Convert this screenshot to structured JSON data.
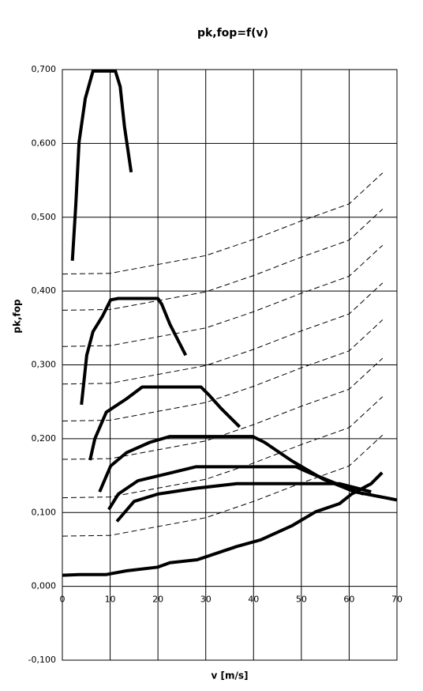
{
  "chart_data": {
    "type": "line",
    "title": "pk,fop=f(v)",
    "x_label": "v [m/s]",
    "y_label": "pk,fop",
    "xlim": [
      0,
      70
    ],
    "xticks": [
      0,
      10,
      20,
      30,
      40,
      50,
      60,
      70
    ],
    "ylim": [
      -0.1,
      0.7
    ],
    "yticks": [
      {
        "value": -0.1,
        "label": "-0,100"
      },
      {
        "value": 0,
        "label": "0,000"
      },
      {
        "value": 0.1,
        "label": "0,100"
      },
      {
        "value": 0.2,
        "label": "0,200"
      },
      {
        "value": 0.3,
        "label": "0,300"
      },
      {
        "value": 0.4,
        "label": "0,400"
      },
      {
        "value": 0.5,
        "label": "0,500"
      },
      {
        "value": 0.6,
        "label": "0,600"
      },
      {
        "value": 0.7,
        "label": "0,700"
      }
    ],
    "grid": true,
    "series": [
      {
        "color": "#000000",
        "style": "solid",
        "x": [
          2.1,
          2.8,
          3.5,
          4.8,
          6.4,
          8.1,
          11.1,
          12.1,
          13.0,
          14.4
        ],
        "values": [
          0.441,
          0.516,
          0.602,
          0.661,
          0.698,
          0.698,
          0.698,
          0.677,
          0.623,
          0.561
        ]
      },
      {
        "color": "#000000",
        "style": "solid",
        "x": [
          4.0,
          5.1,
          6.4,
          8.4,
          10.1,
          11.7,
          20.0,
          20.8,
          22.5,
          25.8
        ],
        "values": [
          0.246,
          0.313,
          0.345,
          0.366,
          0.388,
          0.39,
          0.39,
          0.382,
          0.355,
          0.313
        ]
      },
      {
        "color": "#000000",
        "style": "solid",
        "x": [
          5.8,
          6.8,
          9.2,
          13.4,
          16.7,
          29.0,
          30.7,
          33.2,
          37.1
        ],
        "values": [
          0.171,
          0.2,
          0.236,
          0.254,
          0.27,
          0.27,
          0.259,
          0.241,
          0.216
        ]
      },
      {
        "color": "#000000",
        "style": "solid",
        "x": [
          7.8,
          10.1,
          13.4,
          18.3,
          22.5,
          39.8,
          42.3,
          48.0,
          54.6,
          61.2,
          70.0
        ],
        "values": [
          0.128,
          0.163,
          0.181,
          0.195,
          0.203,
          0.203,
          0.195,
          0.17,
          0.145,
          0.128,
          0.117
        ]
      },
      {
        "color": "#000000",
        "style": "solid",
        "x": [
          9.7,
          11.7,
          15.8,
          21.6,
          27.9,
          48.9,
          51.3,
          59.6,
          63.0
        ],
        "values": [
          0.104,
          0.125,
          0.143,
          0.152,
          0.162,
          0.162,
          0.155,
          0.133,
          0.125
        ]
      },
      {
        "color": "#000000",
        "style": "solid",
        "x": [
          11.4,
          15.0,
          20.0,
          28.2,
          36.5,
          58.0,
          64.6
        ],
        "values": [
          0.088,
          0.115,
          0.125,
          0.133,
          0.139,
          0.139,
          0.128
        ]
      },
      {
        "color": "#000000",
        "style": "solid",
        "x": [
          0,
          3.5,
          9.2,
          13.4,
          20.0,
          22.5,
          28.2,
          36.5,
          41.5,
          48.0,
          53.0,
          58.0,
          60.5,
          64.6,
          66.9
        ],
        "values": [
          0.015,
          0.016,
          0.016,
          0.021,
          0.026,
          0.032,
          0.036,
          0.054,
          0.063,
          0.082,
          0.101,
          0.112,
          0.125,
          0.139,
          0.154
        ]
      },
      {
        "color": "#000000",
        "style": "dashed",
        "x": [
          0,
          10,
          20,
          30,
          40,
          50,
          60,
          67
        ],
        "values": [
          0.068,
          0.069,
          0.081,
          0.093,
          0.115,
          0.14,
          0.163,
          0.205
        ]
      },
      {
        "color": "#000000",
        "style": "dashed",
        "x": [
          0,
          10,
          20,
          30,
          40,
          50,
          60,
          67
        ],
        "values": [
          0.12,
          0.121,
          0.133,
          0.145,
          0.167,
          0.192,
          0.215,
          0.257
        ]
      },
      {
        "color": "#000000",
        "style": "dashed",
        "x": [
          0,
          10,
          20,
          30,
          40,
          50,
          60,
          67
        ],
        "values": [
          0.172,
          0.173,
          0.185,
          0.197,
          0.219,
          0.244,
          0.267,
          0.309
        ]
      },
      {
        "color": "#000000",
        "style": "dashed",
        "x": [
          0,
          10,
          20,
          30,
          40,
          50,
          60,
          67
        ],
        "values": [
          0.224,
          0.225,
          0.237,
          0.249,
          0.271,
          0.296,
          0.319,
          0.361
        ]
      },
      {
        "color": "#000000",
        "style": "dashed",
        "x": [
          0,
          10,
          20,
          30,
          40,
          50,
          60,
          67
        ],
        "values": [
          0.274,
          0.275,
          0.287,
          0.299,
          0.321,
          0.346,
          0.369,
          0.411
        ]
      },
      {
        "color": "#000000",
        "style": "dashed",
        "x": [
          0,
          10,
          20,
          30,
          40,
          50,
          60,
          67
        ],
        "values": [
          0.325,
          0.326,
          0.338,
          0.35,
          0.372,
          0.397,
          0.42,
          0.462
        ]
      },
      {
        "color": "#000000",
        "style": "dashed",
        "x": [
          0,
          10,
          20,
          30,
          40,
          50,
          60,
          67
        ],
        "values": [
          0.374,
          0.375,
          0.387,
          0.399,
          0.421,
          0.446,
          0.469,
          0.511
        ]
      },
      {
        "color": "#000000",
        "style": "dashed",
        "x": [
          0,
          10,
          20,
          30,
          40,
          50,
          60,
          67
        ],
        "values": [
          0.423,
          0.424,
          0.436,
          0.448,
          0.47,
          0.495,
          0.518,
          0.56
        ]
      }
    ]
  }
}
